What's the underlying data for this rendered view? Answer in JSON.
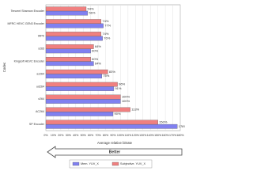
{
  "chart_data": {
    "type": "bar",
    "orientation": "horizontal",
    "ylabel": "Codec",
    "xlabel": "Average relative bitrate",
    "annotation": "Better",
    "categories": [
      "Tencent Shannon Encoder",
      "MFRC HEVC GEN3 Encoder",
      "WPK",
      "x265",
      "Kingsoft HEVC Encoder",
      "sz264",
      "ud264",
      "x264",
      "AC264",
      "SP Encoder"
    ],
    "series": [
      {
        "name": "Mem. YUV_X",
        "color": "#8080f0",
        "values": [
          56,
          77,
          76,
          60,
          64,
          75,
          91,
          100,
          90,
          176
        ],
        "value_labels": [
          "56%",
          "77%",
          "76%",
          "60%",
          "64%",
          "75%",
          "91%",
          "100%",
          "90%",
          "176%"
        ]
      },
      {
        "name": "Subjective. YUV_X",
        "color": "#f08080",
        "values": [
          54,
          74,
          74,
          64,
          60,
          83,
          96,
          100,
          113,
          150
        ],
        "value_labels": [
          "54%",
          "74%",
          "74%",
          "64%",
          "60%",
          "83%",
          "96%",
          "100%",
          "113%",
          "150%"
        ]
      }
    ],
    "xlim": [
      0,
      180
    ],
    "xticks": [
      {
        "value": 0,
        "label": "0%"
      },
      {
        "value": 10,
        "label": "10%"
      },
      {
        "value": 20,
        "label": "20%"
      },
      {
        "value": 30,
        "label": "30%"
      },
      {
        "value": 40,
        "label": "40%"
      },
      {
        "value": 50,
        "label": "50%"
      },
      {
        "value": 60,
        "label": "60%"
      },
      {
        "value": 70,
        "label": "70%"
      },
      {
        "value": 80,
        "label": "80%"
      },
      {
        "value": 90,
        "label": "90%"
      },
      {
        "value": 100,
        "label": "100%"
      },
      {
        "value": 110,
        "label": "110%"
      },
      {
        "value": 120,
        "label": "120%"
      },
      {
        "value": 130,
        "label": "130%"
      },
      {
        "value": 140,
        "label": "140%"
      },
      {
        "value": 150,
        "label": "150%"
      },
      {
        "value": 160,
        "label": "160%"
      },
      {
        "value": 170,
        "label": "170%"
      },
      {
        "value": 180,
        "label": "180%"
      }
    ],
    "grid": true,
    "legend": "bottom"
  }
}
